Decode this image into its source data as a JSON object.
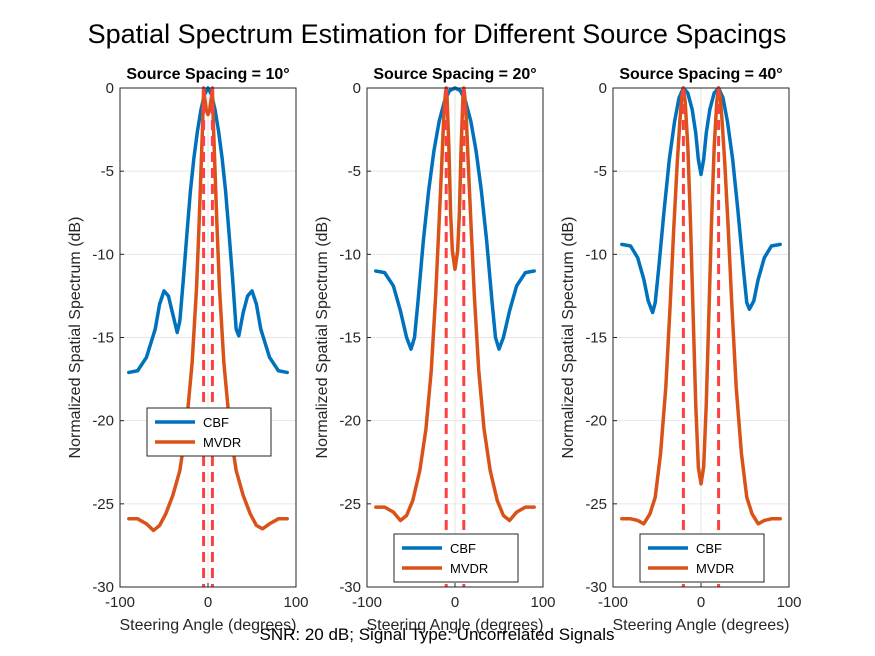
{
  "figure": {
    "title": "Spatial Spectrum Estimation for Different Source Spacings",
    "footer": "SNR: 20 dB; Signal Type: Uncorrelated Signals"
  },
  "colors": {
    "cbf": "#0072BD",
    "mvdr": "#D95319",
    "true_doa": "#FF4040",
    "grid": "#E6E6E6",
    "axes": "#262626"
  },
  "chart_data": [
    {
      "type": "line",
      "title": "Source Spacing = 10°",
      "xlabel": "Steering Angle (degrees)",
      "ylabel": "Normalized Spatial Spectrum (dB)",
      "xlim": [
        -100,
        100
      ],
      "ylim": [
        -30,
        0
      ],
      "xticks": [
        "-100",
        "0",
        "100"
      ],
      "yticks": [
        "-30",
        "-25",
        "-20",
        "-15",
        "-10",
        "-5",
        "0"
      ],
      "grid": true,
      "legend": {
        "placement": "middle-center",
        "entries": [
          "CBF",
          "MVDR"
        ]
      },
      "true_angles": [
        -5,
        5
      ],
      "series": [
        {
          "name": "CBF",
          "color": "#0072BD",
          "points": [
            [
              -90,
              -17.1
            ],
            [
              -80,
              -17.0
            ],
            [
              -70,
              -16.2
            ],
            [
              -60,
              -14.5
            ],
            [
              -55,
              -13.0
            ],
            [
              -50,
              -12.2
            ],
            [
              -45,
              -12.5
            ],
            [
              -40,
              -13.6
            ],
            [
              -35,
              -14.7
            ],
            [
              -32,
              -14.0
            ],
            [
              -28,
              -11.5
            ],
            [
              -24,
              -8.8
            ],
            [
              -20,
              -6.2
            ],
            [
              -16,
              -4.2
            ],
            [
              -12,
              -2.6
            ],
            [
              -8,
              -1.3
            ],
            [
              -4,
              -0.4
            ],
            [
              0,
              0
            ],
            [
              4,
              -0.4
            ],
            [
              8,
              -1.3
            ],
            [
              12,
              -2.6
            ],
            [
              16,
              -4.2
            ],
            [
              20,
              -6.2
            ],
            [
              24,
              -8.8
            ],
            [
              28,
              -11.5
            ],
            [
              32,
              -14.5
            ],
            [
              35,
              -14.9
            ],
            [
              40,
              -13.5
            ],
            [
              45,
              -12.5
            ],
            [
              50,
              -12.2
            ],
            [
              55,
              -13.0
            ],
            [
              60,
              -14.5
            ],
            [
              70,
              -16.2
            ],
            [
              80,
              -17.0
            ],
            [
              90,
              -17.1
            ]
          ]
        },
        {
          "name": "MVDR",
          "color": "#D95319",
          "points": [
            [
              -90,
              -25.9
            ],
            [
              -80,
              -25.9
            ],
            [
              -70,
              -26.2
            ],
            [
              -62,
              -26.6
            ],
            [
              -55,
              -26.3
            ],
            [
              -48,
              -25.6
            ],
            [
              -40,
              -24.5
            ],
            [
              -32,
              -23.0
            ],
            [
              -25,
              -20.5
            ],
            [
              -18,
              -16.5
            ],
            [
              -13,
              -12.0
            ],
            [
              -10,
              -8.0
            ],
            [
              -8,
              -5.0
            ],
            [
              -6,
              -2.0
            ],
            [
              -5,
              0
            ],
            [
              -4,
              -0.5
            ],
            [
              -2,
              -1.3
            ],
            [
              0,
              -1.6
            ],
            [
              2,
              -1.3
            ],
            [
              4,
              -0.5
            ],
            [
              5,
              0
            ],
            [
              6,
              -2.0
            ],
            [
              8,
              -5.0
            ],
            [
              10,
              -8.0
            ],
            [
              13,
              -12.0
            ],
            [
              18,
              -16.5
            ],
            [
              25,
              -20.5
            ],
            [
              32,
              -23.0
            ],
            [
              40,
              -24.5
            ],
            [
              48,
              -25.6
            ],
            [
              55,
              -26.3
            ],
            [
              62,
              -26.5
            ],
            [
              70,
              -26.2
            ],
            [
              80,
              -25.9
            ],
            [
              90,
              -25.9
            ]
          ]
        }
      ]
    },
    {
      "type": "line",
      "title": "Source Spacing = 20°",
      "xlabel": "Steering Angle (degrees)",
      "ylabel": "Normalized Spatial Spectrum (dB)",
      "xlim": [
        -100,
        100
      ],
      "ylim": [
        -30,
        0
      ],
      "xticks": [
        "-100",
        "0",
        "100"
      ],
      "yticks": [
        "-30",
        "-25",
        "-20",
        "-15",
        "-10",
        "-5",
        "0"
      ],
      "grid": true,
      "legend": {
        "placement": "bottom-center",
        "entries": [
          "CBF",
          "MVDR"
        ]
      },
      "true_angles": [
        -10,
        10
      ],
      "series": [
        {
          "name": "CBF",
          "color": "#0072BD",
          "points": [
            [
              -90,
              -11.0
            ],
            [
              -80,
              -11.1
            ],
            [
              -70,
              -11.9
            ],
            [
              -62,
              -13.4
            ],
            [
              -55,
              -15.0
            ],
            [
              -50,
              -15.7
            ],
            [
              -46,
              -15.0
            ],
            [
              -42,
              -12.8
            ],
            [
              -36,
              -9.2
            ],
            [
              -30,
              -6.2
            ],
            [
              -24,
              -3.8
            ],
            [
              -18,
              -2.0
            ],
            [
              -12,
              -0.8
            ],
            [
              -6,
              -0.15
            ],
            [
              0,
              0
            ],
            [
              6,
              -0.15
            ],
            [
              12,
              -0.8
            ],
            [
              18,
              -2.0
            ],
            [
              24,
              -3.8
            ],
            [
              30,
              -6.2
            ],
            [
              36,
              -9.2
            ],
            [
              42,
              -12.8
            ],
            [
              46,
              -15.0
            ],
            [
              50,
              -15.7
            ],
            [
              55,
              -15.0
            ],
            [
              62,
              -13.4
            ],
            [
              70,
              -11.9
            ],
            [
              80,
              -11.1
            ],
            [
              90,
              -11.0
            ]
          ]
        },
        {
          "name": "MVDR",
          "color": "#D95319",
          "points": [
            [
              -90,
              -25.2
            ],
            [
              -80,
              -25.2
            ],
            [
              -70,
              -25.5
            ],
            [
              -62,
              -26.0
            ],
            [
              -55,
              -25.7
            ],
            [
              -48,
              -24.8
            ],
            [
              -40,
              -23.0
            ],
            [
              -33,
              -20.5
            ],
            [
              -27,
              -17.0
            ],
            [
              -22,
              -12.5
            ],
            [
              -18,
              -8.0
            ],
            [
              -15,
              -4.5
            ],
            [
              -13,
              -2.0
            ],
            [
              -11,
              -0.4
            ],
            [
              -10,
              0
            ],
            [
              -9,
              -0.6
            ],
            [
              -7,
              -3.5
            ],
            [
              -5,
              -7.5
            ],
            [
              -3,
              -9.8
            ],
            [
              0,
              -10.9
            ],
            [
              3,
              -9.8
            ],
            [
              5,
              -7.5
            ],
            [
              7,
              -3.5
            ],
            [
              9,
              -0.6
            ],
            [
              10,
              0
            ],
            [
              11,
              -0.4
            ],
            [
              13,
              -2.0
            ],
            [
              15,
              -4.5
            ],
            [
              18,
              -8.0
            ],
            [
              22,
              -12.5
            ],
            [
              27,
              -17.0
            ],
            [
              33,
              -20.5
            ],
            [
              40,
              -23.0
            ],
            [
              48,
              -24.8
            ],
            [
              55,
              -25.7
            ],
            [
              62,
              -26.0
            ],
            [
              70,
              -25.5
            ],
            [
              80,
              -25.2
            ],
            [
              90,
              -25.2
            ]
          ]
        }
      ]
    },
    {
      "type": "line",
      "title": "Source Spacing = 40°",
      "xlabel": "Steering Angle (degrees)",
      "ylabel": "Normalized Spatial Spectrum (dB)",
      "xlim": [
        -100,
        100
      ],
      "ylim": [
        -30,
        0
      ],
      "xticks": [
        "-100",
        "0",
        "100"
      ],
      "yticks": [
        "-30",
        "-25",
        "-20",
        "-15",
        "-10",
        "-5",
        "0"
      ],
      "grid": true,
      "legend": {
        "placement": "bottom-center",
        "entries": [
          "CBF",
          "MVDR"
        ]
      },
      "true_angles": [
        -20,
        20
      ],
      "series": [
        {
          "name": "CBF",
          "color": "#0072BD",
          "points": [
            [
              -90,
              -9.4
            ],
            [
              -80,
              -9.5
            ],
            [
              -72,
              -10.2
            ],
            [
              -65,
              -11.5
            ],
            [
              -60,
              -12.8
            ],
            [
              -55,
              -13.5
            ],
            [
              -52,
              -12.9
            ],
            [
              -48,
              -10.8
            ],
            [
              -42,
              -7.4
            ],
            [
              -36,
              -4.3
            ],
            [
              -30,
              -2.0
            ],
            [
              -25,
              -0.6
            ],
            [
              -20,
              0
            ],
            [
              -15,
              -0.3
            ],
            [
              -10,
              -1.3
            ],
            [
              -6,
              -2.7
            ],
            [
              -3,
              -4.3
            ],
            [
              0,
              -5.2
            ],
            [
              3,
              -4.3
            ],
            [
              6,
              -2.7
            ],
            [
              10,
              -1.3
            ],
            [
              15,
              -0.3
            ],
            [
              20,
              0
            ],
            [
              25,
              -0.6
            ],
            [
              30,
              -2.0
            ],
            [
              36,
              -4.3
            ],
            [
              42,
              -7.4
            ],
            [
              48,
              -10.8
            ],
            [
              52,
              -12.9
            ],
            [
              55,
              -13.3
            ],
            [
              60,
              -12.8
            ],
            [
              65,
              -11.5
            ],
            [
              72,
              -10.2
            ],
            [
              80,
              -9.5
            ],
            [
              90,
              -9.4
            ]
          ]
        },
        {
          "name": "MVDR",
          "color": "#D95319",
          "points": [
            [
              -90,
              -25.9
            ],
            [
              -80,
              -25.9
            ],
            [
              -72,
              -26.0
            ],
            [
              -65,
              -26.2
            ],
            [
              -58,
              -25.6
            ],
            [
              -52,
              -24.6
            ],
            [
              -46,
              -22.0
            ],
            [
              -40,
              -18.0
            ],
            [
              -35,
              -13.0
            ],
            [
              -31,
              -8.5
            ],
            [
              -27,
              -4.5
            ],
            [
              -24,
              -2.0
            ],
            [
              -22,
              -0.6
            ],
            [
              -20,
              0
            ],
            [
              -18,
              -0.8
            ],
            [
              -15,
              -3.5
            ],
            [
              -12,
              -8.0
            ],
            [
              -9,
              -13.5
            ],
            [
              -6,
              -19.0
            ],
            [
              -3,
              -22.8
            ],
            [
              0,
              -23.8
            ],
            [
              3,
              -22.8
            ],
            [
              6,
              -19.0
            ],
            [
              9,
              -13.5
            ],
            [
              12,
              -8.0
            ],
            [
              15,
              -3.5
            ],
            [
              18,
              -0.8
            ],
            [
              20,
              0
            ],
            [
              22,
              -0.6
            ],
            [
              24,
              -2.0
            ],
            [
              27,
              -4.5
            ],
            [
              31,
              -8.5
            ],
            [
              35,
              -13.0
            ],
            [
              40,
              -18.0
            ],
            [
              46,
              -22.0
            ],
            [
              52,
              -24.6
            ],
            [
              58,
              -25.6
            ],
            [
              65,
              -26.2
            ],
            [
              72,
              -26.0
            ],
            [
              80,
              -25.9
            ],
            [
              90,
              -25.9
            ]
          ]
        }
      ]
    }
  ]
}
